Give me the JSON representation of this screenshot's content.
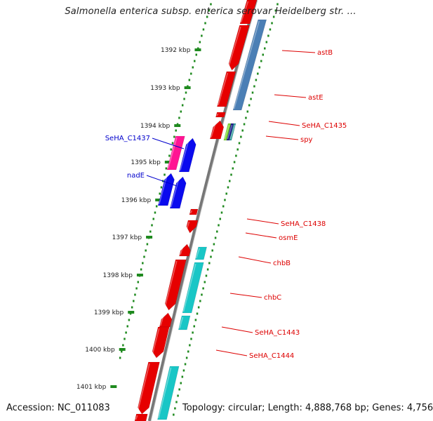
{
  "title": "Salmonella enterica subsp. enterica serovar Heidelberg str. ...",
  "footer": {
    "accession_prefix": "Accession: ",
    "accession": "NC_011083",
    "topology_prefix": "Topology: ",
    "topology": "circular",
    "length_prefix": "; Length: ",
    "length": "4,888,768 bp",
    "genes_prefix": "; Genes: ",
    "genes": "4,756"
  },
  "colors": {
    "backbone": "#7a7a7a",
    "tick": "#1f8a1f",
    "gene_forward_track": "#e60000",
    "gene_blue": "#0a0aee",
    "gene_magenta": "#ff1493",
    "gene_cyan": "#19c6c6",
    "gene_steelblue": "#4b7fb5",
    "label_red": "#dd0000",
    "label_blue": "#0000cc"
  },
  "scale": {
    "unit": "kbp",
    "ticks": [
      "1392 kbp",
      "1393 kbp",
      "1394 kbp",
      "1395 kbp",
      "1396 kbp",
      "1397 kbp",
      "1398 kbp",
      "1399 kbp",
      "1400 kbp",
      "1401 kbp"
    ]
  },
  "gene_labels": [
    {
      "name": "astB",
      "color": "red"
    },
    {
      "name": "astE",
      "color": "red"
    },
    {
      "name": "SeHA_C1435",
      "color": "red"
    },
    {
      "name": "spy",
      "color": "red"
    },
    {
      "name": "SeHA_C1437",
      "color": "blue"
    },
    {
      "name": "nadE",
      "color": "blue"
    },
    {
      "name": "SeHA_C1438",
      "color": "red"
    },
    {
      "name": "osmE",
      "color": "red"
    },
    {
      "name": "chbB",
      "color": "red"
    },
    {
      "name": "chbC",
      "color": "red"
    },
    {
      "name": "SeHA_C1443",
      "color": "red"
    },
    {
      "name": "SeHA_C1444",
      "color": "red"
    }
  ]
}
